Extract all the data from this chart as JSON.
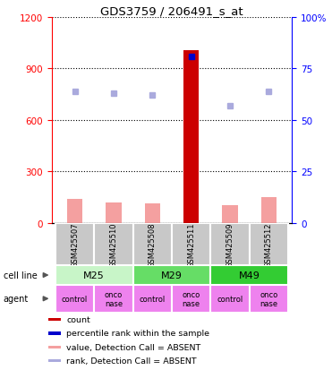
{
  "title": "GDS3759 / 206491_s_at",
  "samples": [
    "GSM425507",
    "GSM425510",
    "GSM425508",
    "GSM425511",
    "GSM425509",
    "GSM425512"
  ],
  "count_values": [
    0,
    0,
    0,
    1007,
    0,
    0
  ],
  "value_absent": [
    140,
    120,
    115,
    0,
    105,
    150
  ],
  "percentile_absent": [
    64,
    63,
    62,
    0,
    57,
    64
  ],
  "percentile_present": [
    0,
    0,
    0,
    81,
    0,
    0
  ],
  "cell_lines": [
    {
      "label": "M25",
      "span": [
        0,
        2
      ],
      "color": "#c8f5c8"
    },
    {
      "label": "M29",
      "span": [
        2,
        4
      ],
      "color": "#66dd66"
    },
    {
      "label": "M49",
      "span": [
        4,
        6
      ],
      "color": "#33cc33"
    }
  ],
  "agents": [
    "control",
    "onco\nnase",
    "control",
    "onco\nnase",
    "control",
    "onco\nnase"
  ],
  "agent_color": "#ee82ee",
  "bar_color_present": "#cc0000",
  "bar_color_absent": "#f4a0a0",
  "dot_color_present": "#0000cc",
  "dot_color_absent": "#aaaadd",
  "ylim_left": [
    0,
    1200
  ],
  "ylim_right": [
    0,
    100
  ],
  "yticks_left": [
    0,
    300,
    600,
    900,
    1200
  ],
  "yticks_right": [
    0,
    25,
    50,
    75,
    100
  ],
  "ytick_labels_right": [
    "0",
    "25",
    "50",
    "75",
    "100%"
  ],
  "legend_items": [
    {
      "color": "#cc0000",
      "label": "count"
    },
    {
      "color": "#0000cc",
      "label": "percentile rank within the sample"
    },
    {
      "color": "#f4a0a0",
      "label": "value, Detection Call = ABSENT"
    },
    {
      "color": "#aaaadd",
      "label": "rank, Detection Call = ABSENT"
    }
  ]
}
